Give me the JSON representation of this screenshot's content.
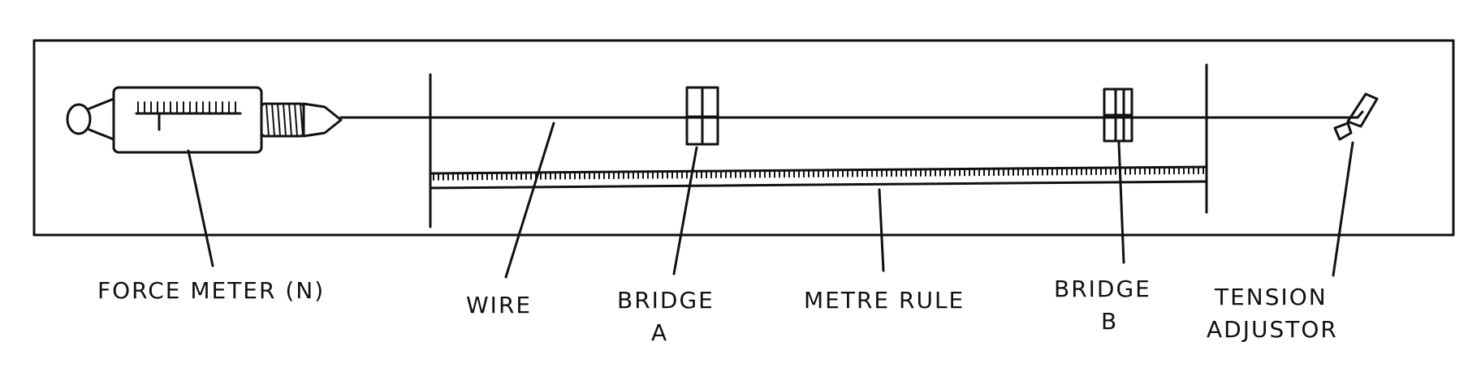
{
  "labels": {
    "force_meter": "FORCE METER (N)",
    "wire": "WIRE",
    "bridge_a_line1": "BRIDGE",
    "bridge_a_line2": "A",
    "metre_rule": "METRE RULE",
    "bridge_b_line1": "BRIDGE",
    "bridge_b_line2": "B",
    "tension_line1": "TENSION",
    "tension_line2": "ADJUSTOR"
  },
  "colors": {
    "ink": "#111111",
    "background": "#ffffff"
  }
}
